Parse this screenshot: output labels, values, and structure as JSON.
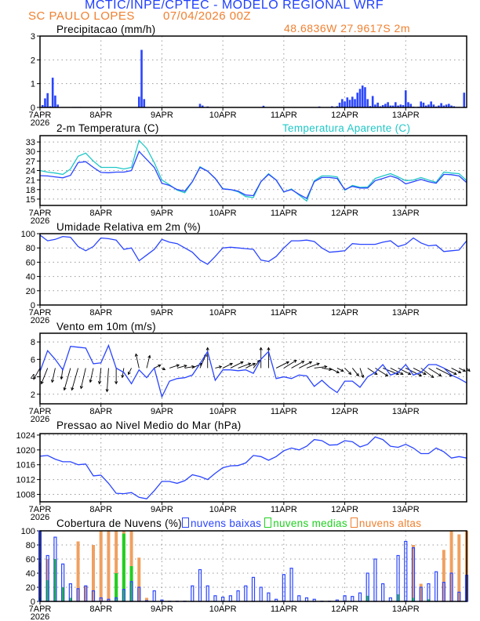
{
  "header": {
    "title": "MCTIC/INPE/CPTEC - MODELO REGIONAL WRF",
    "location": "SC PAULO LOPES",
    "run": "07/04/2026 00Z",
    "coords": "48.6836W 27.9617S 2m",
    "title_color": "#2040ff",
    "location_color": "#f08030"
  },
  "x_axis": {
    "day_labels": [
      "7APR",
      "8APR",
      "9APR",
      "10APR",
      "11APR",
      "12APR",
      "13APR"
    ],
    "year": "2026",
    "hours": 168
  },
  "colors": {
    "line": "#2a45ff",
    "apparent": "#20c8c8",
    "low": "#2a45ff",
    "mid": "#20d020",
    "high": "#f0a060",
    "arrow": "#000000"
  },
  "chart_data": [
    {
      "type": "bar",
      "title": "Precipitacao (mm/h)",
      "ylim": [
        0,
        3
      ],
      "yticks": [
        "0",
        "1",
        "2",
        "3"
      ],
      "grid": true,
      "x_unit": "hour since 7APR 00Z",
      "bars": [
        [
          1,
          0.1
        ],
        [
          2,
          0.38
        ],
        [
          3,
          0.6
        ],
        [
          4,
          0.05
        ],
        [
          5,
          1.25
        ],
        [
          6,
          0.5
        ],
        [
          7,
          0.12
        ],
        [
          13,
          0.02
        ],
        [
          14,
          0.02
        ],
        [
          15,
          0.02
        ],
        [
          16,
          0.02
        ],
        [
          39,
          0.45
        ],
        [
          40,
          2.42
        ],
        [
          41,
          0.35
        ],
        [
          63,
          0.15
        ],
        [
          64,
          0.08
        ],
        [
          66,
          0.04
        ],
        [
          88,
          0.07
        ],
        [
          110,
          0.04
        ],
        [
          115,
          0.05
        ],
        [
          117,
          0.05
        ],
        [
          118,
          0.2
        ],
        [
          119,
          0.35
        ],
        [
          120,
          0.25
        ],
        [
          121,
          0.42
        ],
        [
          122,
          0.32
        ],
        [
          123,
          0.45
        ],
        [
          124,
          0.35
        ],
        [
          125,
          0.62
        ],
        [
          126,
          0.78
        ],
        [
          127,
          0.92
        ],
        [
          128,
          0.85
        ],
        [
          129,
          0.35
        ],
        [
          130,
          0.06
        ],
        [
          131,
          0.48
        ],
        [
          132,
          0.12
        ],
        [
          133,
          0.2
        ],
        [
          134,
          0.05
        ],
        [
          135,
          0.1
        ],
        [
          136,
          0.15
        ],
        [
          137,
          0.22
        ],
        [
          138,
          0.08
        ],
        [
          139,
          0.08
        ],
        [
          140,
          0.22
        ],
        [
          141,
          0.08
        ],
        [
          142,
          0.12
        ],
        [
          143,
          0.1
        ],
        [
          144,
          0.72
        ],
        [
          145,
          0.22
        ],
        [
          146,
          0.15
        ],
        [
          147,
          0.03
        ],
        [
          149,
          0.03
        ],
        [
          150,
          0.25
        ],
        [
          151,
          0.2
        ],
        [
          152,
          0.08
        ],
        [
          153,
          0.12
        ],
        [
          154,
          0.25
        ],
        [
          155,
          0.12
        ],
        [
          156,
          0.04
        ],
        [
          157,
          0.08
        ],
        [
          158,
          0.18
        ],
        [
          159,
          0.08
        ],
        [
          160,
          0.12
        ],
        [
          161,
          0.15
        ],
        [
          162,
          0.08
        ],
        [
          163,
          0.05
        ],
        [
          164,
          0.02
        ],
        [
          165,
          0.02
        ],
        [
          167,
          0.62
        ]
      ]
    },
    {
      "type": "line",
      "title": "2-m Temperatura (C)",
      "ylim": [
        13,
        35
      ],
      "yticks": [
        "15",
        "18",
        "21",
        "24",
        "27",
        "30",
        "33"
      ],
      "grid": true,
      "x_step_hours": 3,
      "series": [
        {
          "name": "2-m Temperatura (C)",
          "values": [
            22.4,
            22.3,
            22.0,
            21.7,
            22.5,
            26.5,
            26.8,
            25.0,
            23.4,
            23.3,
            23.5,
            23.5,
            24.0,
            30.0,
            27.5,
            25.0,
            20.0,
            19.3,
            18.0,
            17.5,
            20.5,
            25.0,
            23.8,
            21.5,
            18.2,
            18.0,
            17.5,
            16.3,
            16.1,
            20.5,
            22.8,
            21.0,
            17.3,
            18.0,
            16.5,
            15.2,
            20.5,
            21.8,
            21.8,
            21.5,
            18.0,
            19.0,
            18.5,
            18.5,
            20.8,
            21.5,
            22.3,
            21.5,
            19.8,
            20.5,
            21.2,
            20.5,
            20.0,
            22.8,
            22.7,
            22.3,
            20.2
          ]
        },
        {
          "name": "Temperatura Aparente (C)",
          "values": [
            24.0,
            23.5,
            23.2,
            22.8,
            24.5,
            28.5,
            29.5,
            27.0,
            25.0,
            25.0,
            25.0,
            24.5,
            25.0,
            33.5,
            31.0,
            26.5,
            21.0,
            19.5,
            17.8,
            17.0,
            20.5,
            25.2,
            23.8,
            21.5,
            18.3,
            18.0,
            17.3,
            15.8,
            15.5,
            20.5,
            23.0,
            21.0,
            17.2,
            18.2,
            16.3,
            14.4,
            20.8,
            22.3,
            22.3,
            22.0,
            17.8,
            19.3,
            18.7,
            18.8,
            21.5,
            22.3,
            23.0,
            22.0,
            20.8,
            21.0,
            21.8,
            21.0,
            20.3,
            23.5,
            23.2,
            23.0,
            20.8
          ]
        }
      ]
    },
    {
      "type": "line",
      "title": "Umidade Relativa em 2m (%)",
      "ylim": [
        0,
        100
      ],
      "yticks": [
        "0",
        "20",
        "40",
        "60",
        "80",
        "100"
      ],
      "grid": true,
      "x_step_hours": 3,
      "series": [
        {
          "values": [
            98,
            90,
            92,
            96,
            95,
            82,
            76,
            82,
            94,
            93,
            91,
            78,
            80,
            62,
            70,
            78,
            92,
            88,
            86,
            80,
            74,
            63,
            57,
            68,
            80,
            81,
            80,
            79,
            78,
            63,
            61,
            68,
            80,
            90,
            90,
            91,
            89,
            80,
            74,
            75,
            76,
            86,
            85,
            85,
            85,
            88,
            90,
            82,
            85,
            94,
            87,
            83,
            84,
            75,
            76,
            77,
            90
          ]
        }
      ]
    },
    {
      "type": "line",
      "title": "Vento em 10m (m/s)",
      "ylim": [
        0.9,
        9
      ],
      "yticks": [
        "2",
        "4",
        "6",
        "8"
      ],
      "grid": true,
      "x_step_hours": 3,
      "series": [
        {
          "values": [
            4.6,
            7.0,
            6.0,
            4.8,
            7.5,
            7.4,
            7.3,
            5.5,
            5.6,
            7.6,
            5.0,
            4.5,
            3.2,
            4.8,
            3.9,
            5.0,
            1.7,
            3.5,
            3.8,
            3.9,
            4.2,
            5.5,
            6.9,
            3.6,
            4.8,
            4.8,
            4.7,
            4.8,
            4.4,
            6.0,
            6.9,
            3.8,
            4.0,
            3.8,
            4.2,
            4.1,
            2.9,
            3.6,
            2.8,
            2.2,
            3.5,
            3.5,
            2.8,
            4.0,
            4.5,
            5.4,
            4.2,
            4.5,
            5.4,
            4.2,
            4.5,
            5.4,
            5.4,
            5.0,
            4.2,
            3.8,
            3.3
          ]
        }
      ],
      "vectors_uv": [
        [
          -2,
          -3.5
        ],
        [
          -2,
          -5
        ],
        [
          -1,
          -4.5
        ],
        [
          -0.5,
          -3.5
        ],
        [
          -2,
          -7
        ],
        [
          -2,
          -7
        ],
        [
          -1.5,
          -6.5
        ],
        [
          -1,
          -4.5
        ],
        [
          -0.5,
          -5
        ],
        [
          -0.5,
          -7.5
        ],
        [
          0,
          -5
        ],
        [
          -0.5,
          -3
        ],
        [
          -1,
          -2
        ],
        [
          -1,
          4.5
        ],
        [
          1,
          4
        ],
        [
          2,
          1
        ],
        [
          1,
          -0.5
        ],
        [
          3,
          1
        ],
        [
          3,
          0.8
        ],
        [
          3,
          0.5
        ],
        [
          3,
          1.5
        ],
        [
          2,
          4.5
        ],
        [
          0,
          6.5
        ],
        [
          2,
          0.5
        ],
        [
          3,
          1.5
        ],
        [
          4,
          2
        ],
        [
          4,
          1.5
        ],
        [
          3,
          1.5
        ],
        [
          2,
          2.5
        ],
        [
          0,
          6.5
        ],
        [
          0,
          6.5
        ],
        [
          4,
          2
        ],
        [
          4,
          2.5
        ],
        [
          4,
          2.2
        ],
        [
          4,
          2
        ],
        [
          4,
          1.5
        ],
        [
          4,
          0.5
        ],
        [
          3,
          -0.5
        ],
        [
          3,
          -1.5
        ],
        [
          2,
          -1
        ],
        [
          2,
          -2
        ],
        [
          2,
          -2.5
        ],
        [
          1,
          -3
        ],
        [
          3,
          -2
        ],
        [
          4,
          -2.5
        ],
        [
          5,
          -2
        ],
        [
          4,
          -2
        ],
        [
          4,
          -2
        ],
        [
          5,
          -2.5
        ],
        [
          4,
          -2
        ],
        [
          4,
          -3
        ],
        [
          4,
          -2.5
        ],
        [
          5,
          -2.5
        ],
        [
          4,
          -2
        ],
        [
          3,
          -1.5
        ],
        [
          2,
          -1
        ],
        [
          1,
          -1
        ]
      ]
    },
    {
      "type": "line",
      "title": "Pressao ao Nivel Medio do Mar (hPa)",
      "ylim": [
        1006,
        1024.4
      ],
      "yticks": [
        "1008",
        "1012",
        "1016",
        "1020",
        "1024"
      ],
      "grid": true,
      "x_step_hours": 3,
      "series": [
        {
          "values": [
            1018.3,
            1018.5,
            1017.5,
            1016.8,
            1016.8,
            1016.0,
            1016.2,
            1013.0,
            1013.2,
            1011.0,
            1008.3,
            1008.2,
            1008.5,
            1007.2,
            1006.8,
            1009.0,
            1011.5,
            1011.5,
            1011.0,
            1011.7,
            1013.3,
            1012.8,
            1012.0,
            1013.7,
            1015.2,
            1015.7,
            1015.8,
            1016.5,
            1018.5,
            1018.2,
            1017.2,
            1018.2,
            1019.8,
            1020.5,
            1020.0,
            1021.0,
            1022.8,
            1022.5,
            1021.3,
            1021.4,
            1022.5,
            1022.2,
            1020.8,
            1021.5,
            1023.5,
            1022.8,
            1021.0,
            1020.7,
            1021.5,
            1020.5,
            1019.0,
            1019.0,
            1020.5,
            1019.5,
            1017.8,
            1018.2,
            1017.8
          ]
        }
      ]
    },
    {
      "type": "bar",
      "title": "Cobertura de Nuvens (%)",
      "ylim": [
        0,
        100
      ],
      "yticks": [
        "0",
        "20",
        "40",
        "60",
        "80",
        "100"
      ],
      "grid": true,
      "x_step_hours": 3,
      "series": [
        {
          "name": "nuvens altas",
          "values": [
            55,
            60,
            20,
            0,
            0,
            85,
            22,
            80,
            100,
            100,
            100,
            100,
            100,
            62,
            5,
            0,
            0,
            0,
            0,
            0,
            0,
            0,
            0,
            0,
            0,
            0,
            0,
            0,
            0,
            0,
            0,
            0,
            0,
            0,
            0,
            0,
            0,
            0,
            0,
            0,
            0,
            0,
            0,
            0,
            0,
            0,
            0,
            0,
            0,
            80,
            25,
            0,
            0,
            73,
            100,
            95,
            100
          ]
        },
        {
          "name": "nuvens medias",
          "values": [
            5,
            30,
            60,
            20,
            5,
            0,
            0,
            0,
            0,
            0,
            40,
            96,
            50,
            0,
            0,
            0,
            0,
            0,
            0,
            0,
            0,
            0,
            0,
            0,
            0,
            0,
            0,
            0,
            0,
            0,
            0,
            0,
            0,
            0,
            0,
            0,
            0,
            0,
            0,
            0,
            0,
            0,
            0,
            8,
            0,
            0,
            0,
            10,
            0,
            5,
            0,
            3,
            0,
            0,
            0,
            0,
            0
          ]
        },
        {
          "name": "nuvens baixas",
          "values": [
            100,
            65,
            91,
            53,
            25,
            18,
            22,
            15,
            5,
            3,
            5,
            17,
            28,
            20,
            1,
            15,
            2,
            0,
            0,
            0,
            22,
            45,
            22,
            8,
            6,
            8,
            15,
            22,
            34,
            20,
            12,
            3,
            38,
            47,
            8,
            5,
            3,
            0,
            0,
            2,
            8,
            7,
            12,
            40,
            60,
            25,
            5,
            65,
            85,
            76,
            20,
            25,
            42,
            27,
            40,
            13,
            37
          ]
        }
      ]
    }
  ]
}
